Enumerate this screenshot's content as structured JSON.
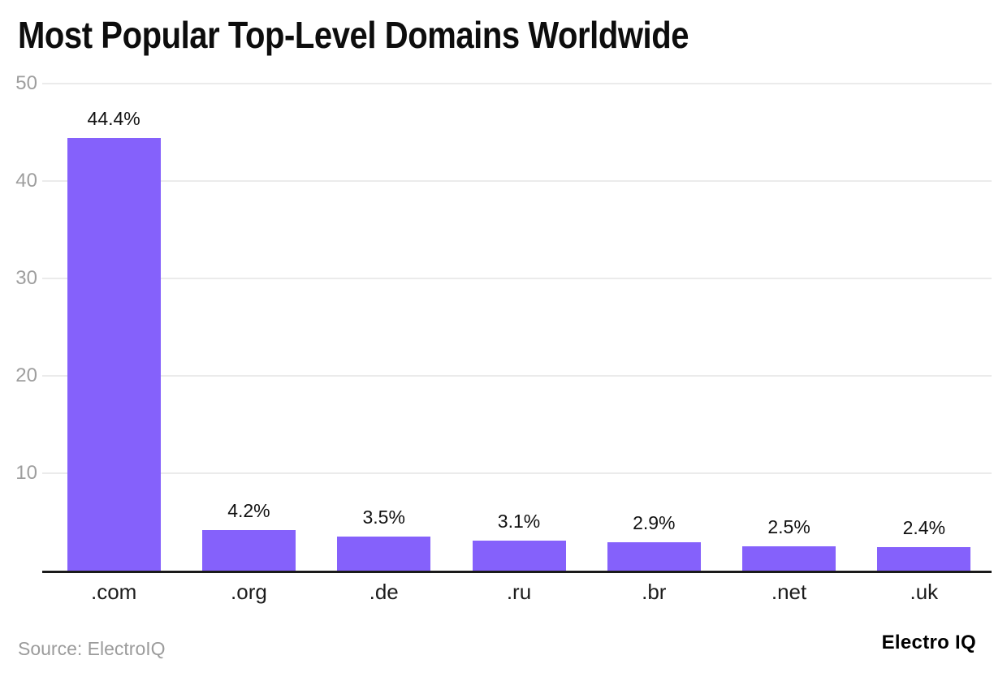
{
  "title": "Most Popular Top-Level Domains Worldwide",
  "footer": {
    "source": "Source: ElectroIQ",
    "brand": "Electro IQ"
  },
  "colors": {
    "bar": "#8561FB",
    "gridline": "#EBEBEB",
    "axis_line": "#1A1A1A",
    "y_tick_text": "#9E9E9E",
    "x_tick_text": "#1C1C1C",
    "value_label_text": "#111111",
    "title_text": "#0D0D0D",
    "source_text": "#9B9B9B",
    "background": "#FFFFFF"
  },
  "chart_data": {
    "type": "bar",
    "title": "Most Popular Top-Level Domains Worldwide",
    "categories": [
      ".com",
      ".org",
      ".de",
      ".ru",
      ".br",
      ".net",
      ".uk"
    ],
    "values": [
      44.4,
      4.2,
      3.5,
      3.1,
      2.9,
      2.5,
      2.4
    ],
    "value_labels": [
      "44.4%",
      "4.2%",
      "3.5%",
      "3.1%",
      "2.9%",
      "2.5%",
      "2.4%"
    ],
    "xlabel": "",
    "ylabel": "",
    "ylim": [
      0,
      50
    ],
    "yticks": [
      50,
      40,
      30,
      20,
      10
    ],
    "grid": "horizontal",
    "legend": "none",
    "bar_color": "#8561FB"
  }
}
